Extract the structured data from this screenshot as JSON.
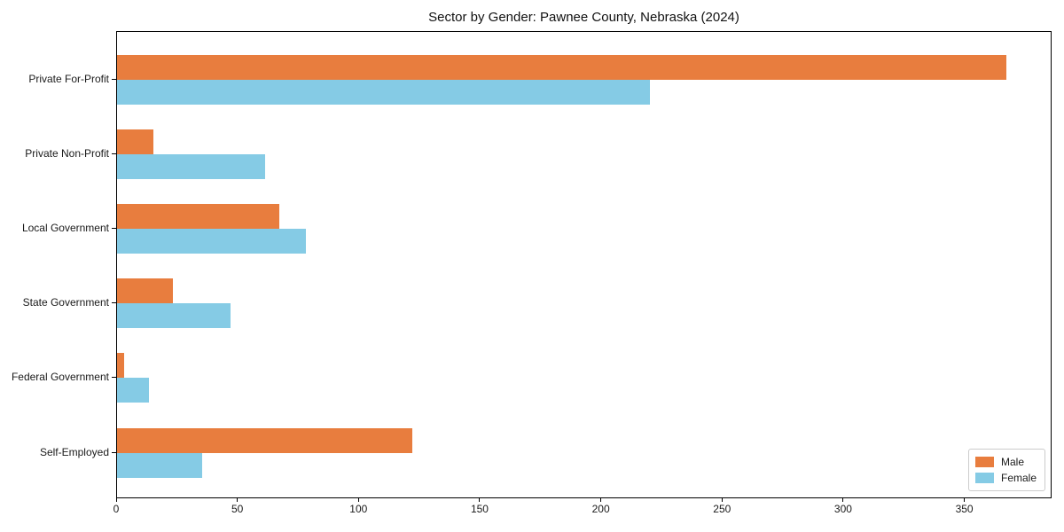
{
  "chart_data": {
    "type": "bar",
    "orientation": "horizontal",
    "title": "Sector by Gender: Pawnee County, Nebraska (2024)",
    "categories": [
      "Private For-Profit",
      "Private Non-Profit",
      "Local Government",
      "State Government",
      "Federal Government",
      "Self-Employed"
    ],
    "series": [
      {
        "name": "Male",
        "color": "#e87d3e",
        "values": [
          367,
          15,
          67,
          23,
          3,
          122
        ]
      },
      {
        "name": "Female",
        "color": "#85cbe5",
        "values": [
          220,
          61,
          78,
          47,
          13,
          35
        ]
      }
    ],
    "xlabel": "",
    "ylabel": "",
    "xlim": [
      0,
      386
    ],
    "xticks": [
      0,
      50,
      100,
      150,
      200,
      250,
      300,
      350
    ],
    "grid": false,
    "legend": {
      "position": "lower right",
      "entries": [
        "Male",
        "Female"
      ]
    }
  },
  "colors": {
    "male": "#e87d3e",
    "female": "#85cbe5",
    "spine": "#000000",
    "text": "#1a1a1a",
    "legend_border": "#cccccc",
    "background": "#ffffff"
  }
}
